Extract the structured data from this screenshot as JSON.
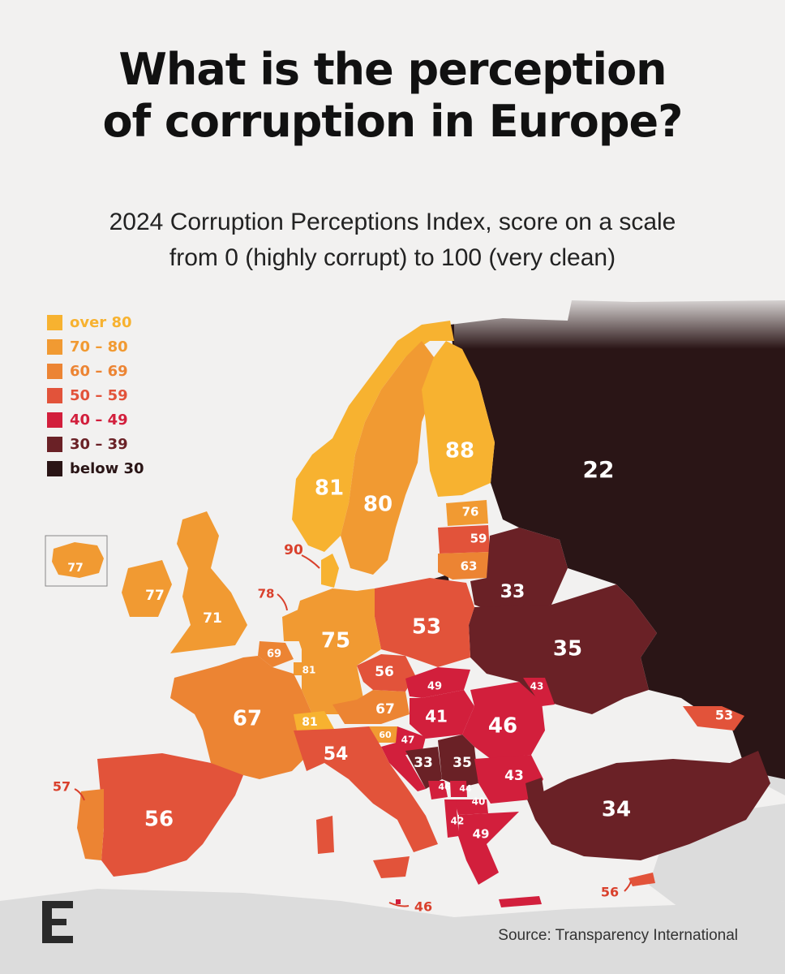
{
  "title_line1": "What is the perception",
  "title_line2": "of corruption in Europe?",
  "subtitle_line1": "2024 Corruption Perceptions Index, score on a scale",
  "subtitle_line2": "from 0 (highly corrupt) to 100 (very clean)",
  "legend": [
    {
      "label": "over 80",
      "color": "#f7b230"
    },
    {
      "label": "70 – 80",
      "color": "#f19a32"
    },
    {
      "label": "60 – 69",
      "color": "#ec8433"
    },
    {
      "label": "50 – 59",
      "color": "#e2533a"
    },
    {
      "label": "40 – 49",
      "color": "#d21f3c"
    },
    {
      "label": "30 – 39",
      "color": "#6a2126"
    },
    {
      "label": "below 30",
      "color": "#2a1516"
    }
  ],
  "scores": {
    "russia": "22",
    "finland": "88",
    "sweden": "80",
    "norway": "81",
    "denmark": "90",
    "estonia": "76",
    "latvia": "59",
    "lithuania": "63",
    "belarus": "33",
    "ukraine": "35",
    "poland": "53",
    "germany": "75",
    "netherlands": "78",
    "belgium": "69",
    "luxembourg": "81",
    "france": "67",
    "switzerland": "81",
    "austria": "67",
    "czechia": "56",
    "slovakia": "49",
    "hungary": "41",
    "romania": "46",
    "moldova": "43",
    "slovenia": "60",
    "croatia": "47",
    "bosnia": "33",
    "serbia": "35",
    "bulgaria": "43",
    "montenegro": "46",
    "kosovo": "44",
    "north_macedonia": "40",
    "albania": "42",
    "greece": "49",
    "turkey": "34",
    "georgia": "53",
    "cyprus": "56",
    "italy": "54",
    "malta": "46",
    "spain": "56",
    "portugal": "57",
    "ireland": "77",
    "uk": "71",
    "iceland": "77"
  },
  "source": "Source: Transparency International",
  "logo_letter": "E"
}
